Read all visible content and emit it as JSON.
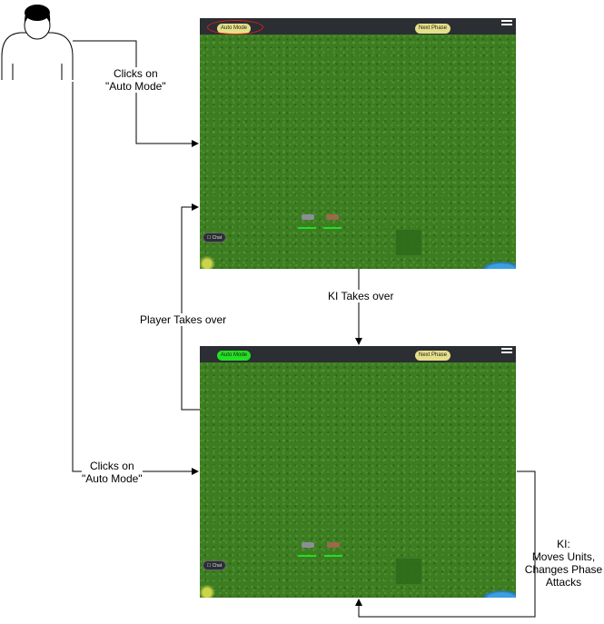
{
  "labels": {
    "clicks_auto_mode": "Clicks on\n\"Auto Mode\"",
    "ki_takes_over": "KI Takes over",
    "player_takes_over": "Player Takes over",
    "ki_actions": "KI:\nMoves Units,\nChanges Phase\nAttacks"
  },
  "screen_top": {
    "auto_mode_label": "Auto Mode",
    "auto_mode_color": "#e6e08a",
    "next_phase_label": "Next Phase",
    "chat_label": "Chat"
  },
  "screen_bottom": {
    "auto_mode_label": "Auto Mode",
    "auto_mode_color": "#22e022",
    "next_phase_label": "Next Phase",
    "chat_label": "Chat"
  },
  "colors": {
    "highlight_ring": "#e02020",
    "grass": "#3c7d22",
    "top_bar": "#2b2e33"
  }
}
